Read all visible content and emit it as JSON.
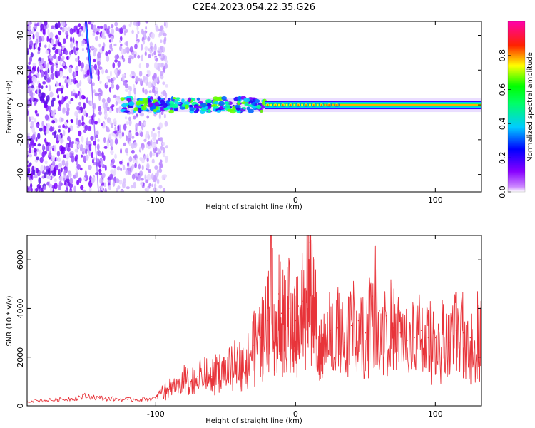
{
  "title": "C2E4.2023.054.22.35.G26",
  "chart_data": [
    {
      "type": "heatmap",
      "xlabel": "Height of straight line (km)",
      "ylabel": "Frequency (Hz)",
      "xlim": [
        -192,
        133
      ],
      "ylim": [
        -50,
        48
      ],
      "xticks": [
        -100,
        0,
        100
      ],
      "xtick_labels": [
        "-100",
        "0",
        "100"
      ],
      "yticks": [
        -40,
        -20,
        0,
        20,
        40
      ],
      "ytick_labels": [
        "-40",
        "-20",
        "0",
        "20",
        "40"
      ],
      "colorbar": {
        "label": "Normalized spectral amplitude",
        "range": [
          0,
          1
        ],
        "ticks": [
          0.0,
          0.2,
          0.4,
          0.6,
          0.8
        ],
        "tick_labels": [
          "0.0",
          "0.2",
          "0.4",
          "0.6",
          "0.8"
        ],
        "colormap": [
          "#ffffff",
          "#8800ff",
          "#0000ff",
          "#00ffff",
          "#00ff00",
          "#ffff00",
          "#ff0000",
          "#ff00aa"
        ]
      },
      "features": {
        "noise_region_x": [
          -192,
          -92
        ],
        "carrier_frequency": 0,
        "carrier_band_x": [
          -125,
          133
        ],
        "strong_carrier_x": [
          -22,
          133
        ],
        "slanted_trace": {
          "x_start": -150,
          "x_end": -146,
          "y_start": 48,
          "y_end": 15
        }
      },
      "grid": false
    },
    {
      "type": "line",
      "xlabel": "Height of straight line (km)",
      "ylabel": "SNR (10 * v/v)",
      "xlim": [
        -192,
        133
      ],
      "ylim": [
        0,
        7000
      ],
      "xticks": [
        -100,
        0,
        100
      ],
      "xtick_labels": [
        "-100",
        "0",
        "100"
      ],
      "yticks": [
        0,
        2000,
        4000,
        6000
      ],
      "ytick_labels": [
        "0",
        "2000",
        "4000",
        "6000"
      ],
      "color": "#e8343a",
      "series": [
        {
          "x": [
            -192,
            -180,
            -170,
            -160,
            -150,
            -140,
            -130,
            -120,
            -110,
            -100,
            -95,
            -90,
            -85,
            -80,
            -75,
            -70,
            -65,
            -60,
            -55,
            -50,
            -45,
            -40,
            -35,
            -30,
            -25,
            -20,
            -17,
            -15,
            -12,
            -10,
            -8,
            -5,
            -2,
            0,
            2,
            5,
            8,
            10,
            12,
            15,
            18,
            20,
            25,
            30,
            35,
            40,
            45,
            50,
            55,
            60,
            65,
            70,
            75,
            80,
            85,
            90,
            95,
            100,
            105,
            110,
            115,
            120,
            125,
            130,
            133
          ],
          "y": [
            200,
            220,
            250,
            300,
            400,
            320,
            280,
            260,
            270,
            300,
            700,
            800,
            900,
            1100,
            1000,
            1200,
            1300,
            1200,
            1500,
            1400,
            1700,
            1800,
            1900,
            2500,
            2800,
            3500,
            6700,
            2200,
            4600,
            3800,
            3700,
            4000,
            3300,
            3500,
            4100,
            4300,
            4600,
            6700,
            4400,
            3500,
            2300,
            2600,
            3100,
            3200,
            2600,
            3300,
            3500,
            3000,
            4500,
            3900,
            3700,
            3200,
            3000,
            2700,
            2800,
            3100,
            2800,
            2800,
            3000,
            2600,
            3100,
            3000,
            2800,
            3200,
            3400
          ]
        }
      ],
      "grid": false
    }
  ]
}
